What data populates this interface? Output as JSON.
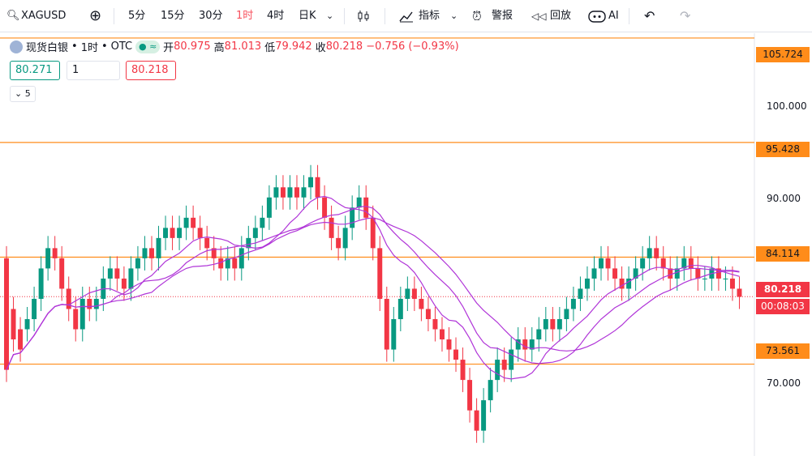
{
  "toolbar": {
    "symbol": "XAGUSD",
    "intervals": [
      "5分",
      "15分",
      "30分",
      "1时",
      "4时",
      "日K"
    ],
    "active_interval": "1时",
    "indicators_label": "指标",
    "alert_label": "警报",
    "replay_label": "回放",
    "ai_label": "AI"
  },
  "legend": {
    "name": "现货白银",
    "interval": "1时",
    "source": "OTC",
    "open_label": "开",
    "open": "80.975",
    "high_label": "高",
    "high": "81.013",
    "low_label": "低",
    "low": "79.942",
    "close_label": "收",
    "close": "80.218",
    "change": "−0.756",
    "change_pct": "(−0.93%)",
    "status_icon": "≈"
  },
  "quote": {
    "bid": "80.271",
    "qty": "1",
    "ask": "80.218"
  },
  "ma_toggle": "5",
  "axis": {
    "ticks": [
      "100.000",
      "90.000",
      "70.000"
    ],
    "levels": [
      "105.724",
      "95.428",
      "84.114",
      "73.561"
    ],
    "last_price": "80.218",
    "countdown": "00:08:03"
  },
  "colors": {
    "up": "#089981",
    "down": "#f23645",
    "level": "#ff8c1a",
    "ma": "#b035d8",
    "active": "#f7525f"
  },
  "chart_data": {
    "type": "candlestick",
    "ylim": [
      64.5,
      106.2
    ],
    "horizontal_levels": [
      105.724,
      95.428,
      84.114,
      73.561
    ],
    "last_price": 80.218,
    "candles": [
      [
        84,
        73
      ],
      [
        79,
        76
      ],
      [
        77,
        75
      ],
      [
        77,
        78
      ],
      [
        78,
        80
      ],
      [
        80,
        83
      ],
      [
        83,
        85
      ],
      [
        85,
        84
      ],
      [
        84,
        81
      ],
      [
        81,
        79
      ],
      [
        79,
        77
      ],
      [
        77,
        80
      ],
      [
        80,
        79
      ],
      [
        79,
        80
      ],
      [
        80,
        82
      ],
      [
        82,
        83
      ],
      [
        83,
        82
      ],
      [
        82,
        81
      ],
      [
        81,
        83
      ],
      [
        83,
        84
      ],
      [
        84,
        85
      ],
      [
        85,
        84
      ],
      [
        84,
        86
      ],
      [
        86,
        87
      ],
      [
        87,
        86
      ],
      [
        86,
        87
      ],
      [
        87,
        88
      ],
      [
        88,
        87
      ],
      [
        87,
        86
      ],
      [
        86,
        85
      ],
      [
        85,
        84
      ],
      [
        84,
        83
      ],
      [
        83,
        84
      ],
      [
        84,
        83
      ],
      [
        83,
        85
      ],
      [
        85,
        86
      ],
      [
        86,
        87
      ],
      [
        87,
        88
      ],
      [
        88,
        90
      ],
      [
        90,
        91
      ],
      [
        91,
        90
      ],
      [
        90,
        91
      ],
      [
        91,
        90
      ],
      [
        90,
        91
      ],
      [
        91,
        92
      ],
      [
        92,
        90
      ],
      [
        90,
        88
      ],
      [
        88,
        86
      ],
      [
        86,
        85
      ],
      [
        85,
        87
      ],
      [
        87,
        89
      ],
      [
        89,
        90
      ],
      [
        90,
        88
      ],
      [
        88,
        85
      ],
      [
        85,
        80
      ],
      [
        80,
        75
      ],
      [
        75,
        78
      ],
      [
        78,
        80
      ],
      [
        80,
        81
      ],
      [
        81,
        80
      ],
      [
        80,
        79
      ],
      [
        79,
        78
      ],
      [
        78,
        77
      ],
      [
        77,
        76
      ],
      [
        76,
        75
      ],
      [
        75,
        74
      ],
      [
        74,
        72
      ],
      [
        72,
        69
      ],
      [
        69,
        67
      ],
      [
        67,
        70
      ],
      [
        70,
        72
      ],
      [
        72,
        74
      ],
      [
        74,
        73
      ],
      [
        73,
        75
      ],
      [
        75,
        76
      ],
      [
        76,
        75
      ],
      [
        75,
        76
      ],
      [
        76,
        77
      ],
      [
        77,
        78
      ],
      [
        78,
        77
      ],
      [
        77,
        78
      ],
      [
        78,
        79
      ],
      [
        79,
        80
      ],
      [
        80,
        81
      ],
      [
        81,
        82
      ],
      [
        82,
        83
      ],
      [
        83,
        84
      ],
      [
        84,
        83
      ],
      [
        83,
        82
      ],
      [
        82,
        81
      ],
      [
        81,
        82
      ],
      [
        82,
        83
      ],
      [
        83,
        84
      ],
      [
        84,
        85
      ],
      [
        85,
        84
      ],
      [
        84,
        83
      ],
      [
        83,
        82
      ],
      [
        82,
        83
      ],
      [
        83,
        84
      ],
      [
        84,
        83
      ],
      [
        83,
        82
      ],
      [
        82,
        82
      ],
      [
        82,
        83
      ],
      [
        83,
        82
      ],
      [
        82,
        82
      ],
      [
        82,
        81
      ],
      [
        81,
        80.2
      ]
    ],
    "ma_series": 3
  }
}
